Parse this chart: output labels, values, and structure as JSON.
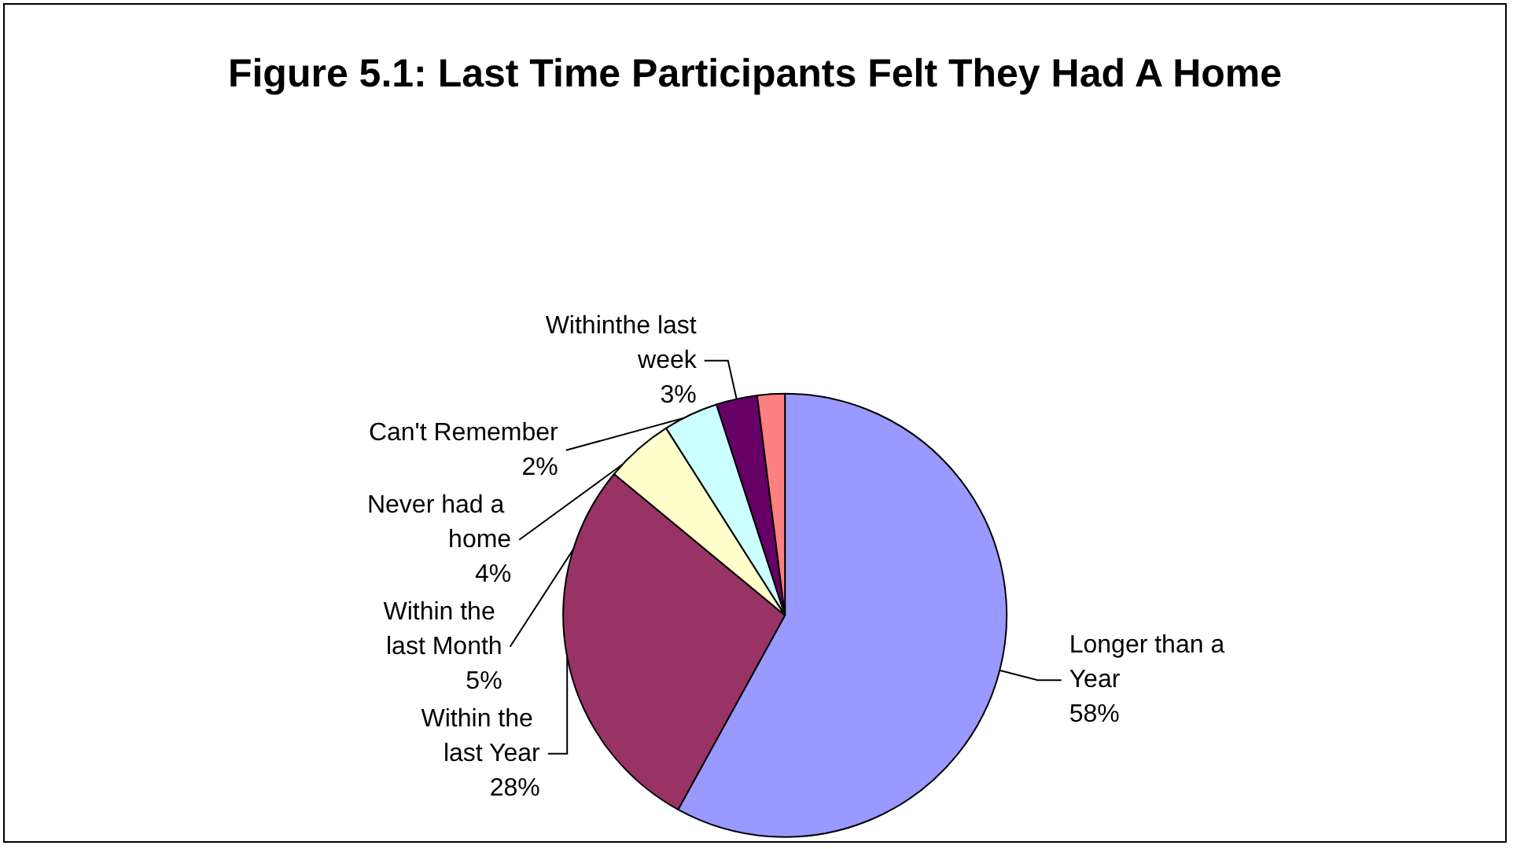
{
  "chart_data": {
    "type": "pie",
    "title": "Figure 5.1: Last Time Participants Felt They Had A Home",
    "categories": [
      "Longer than a Year",
      "Within the last Year",
      "Within the last Month",
      "Never had a home",
      "Withinthe last week",
      "Can't Remember"
    ],
    "values": [
      58,
      28,
      5,
      4,
      3,
      2
    ],
    "colors": [
      "#9999ff",
      "#993366",
      "#ffffcc",
      "#ccffff",
      "#660066",
      "#ff8080"
    ],
    "value_labels": [
      "58%",
      "28%",
      "5%",
      "4%",
      "3%",
      "2%"
    ],
    "legend": false
  }
}
